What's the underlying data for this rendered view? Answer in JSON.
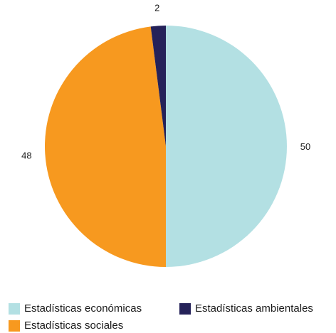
{
  "chart_data": {
    "type": "pie",
    "categories": [
      "Estadísticas económicas",
      "Estadísticas sociales",
      "Estadísticas ambientales"
    ],
    "values": [
      50,
      48,
      2
    ],
    "data_labels": [
      "50",
      "48",
      "2"
    ],
    "colors": [
      "#b3e0e3",
      "#f7991f",
      "#252259"
    ],
    "start_angle_deg": 0,
    "direction": "clockwise",
    "legend_position": "bottom"
  }
}
